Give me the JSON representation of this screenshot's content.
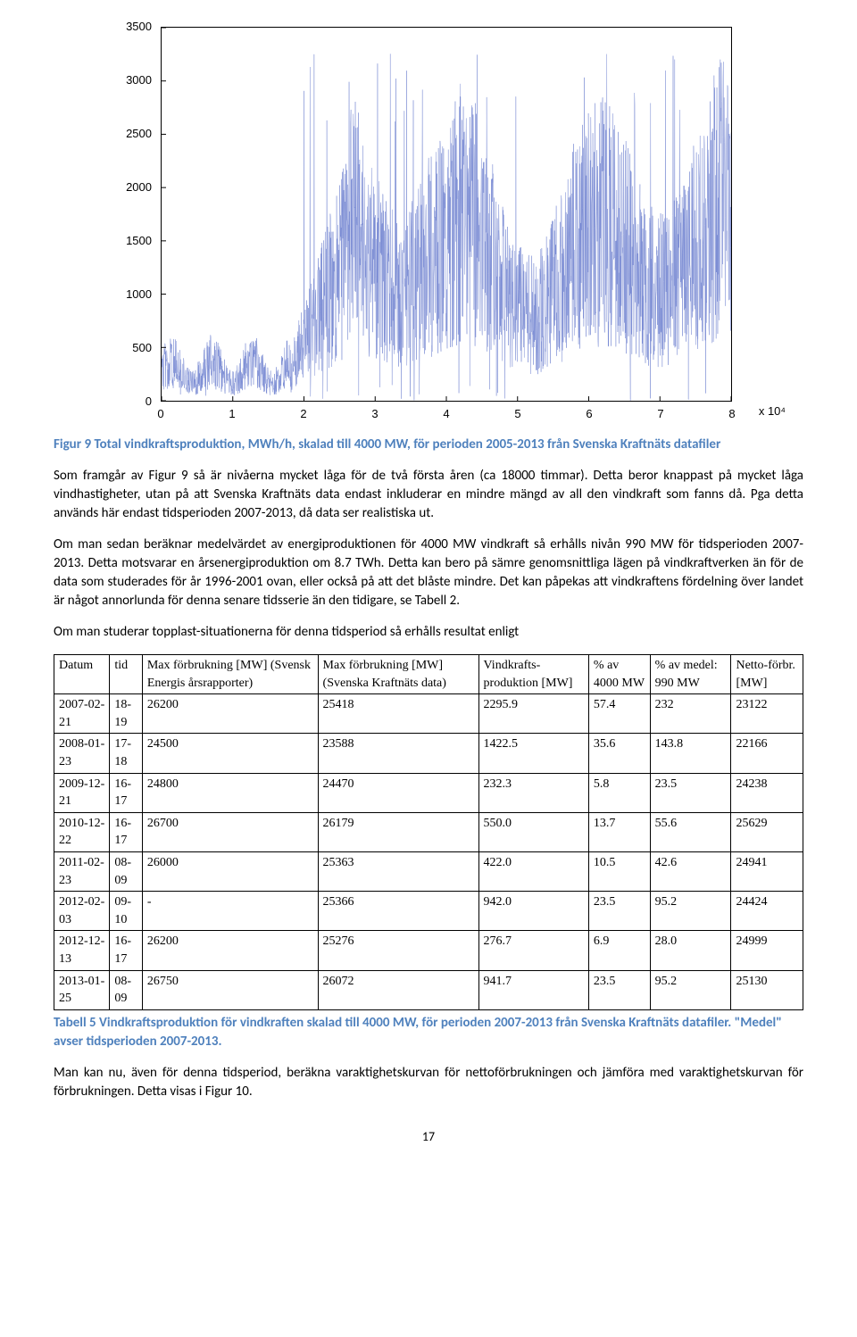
{
  "chart": {
    "type": "line",
    "y_ticks": [
      0,
      500,
      1000,
      1500,
      2000,
      2500,
      3000,
      3500
    ],
    "x_ticks": [
      0,
      1,
      2,
      3,
      4,
      5,
      6,
      7,
      8
    ],
    "x_exponent_label": "x 10⁴",
    "ylim": [
      0,
      3500
    ],
    "xlim": [
      0,
      8
    ],
    "line_color": "#7b8cd4",
    "line_width": 0.5,
    "background_color": "#ffffff",
    "axis_color": "#000000",
    "tick_fontsize": 13
  },
  "figure_caption": "Figur 9 Total vindkraftsproduktion, MWh/h, skalad till 4000 MW, för perioden 2005-2013 från Svenska Kraftnäts datafiler",
  "para1": "Som framgår av Figur 9 så är nivåerna mycket låga för de två första åren (ca 18000 timmar). Detta beror knappast på mycket låga vindhastigheter, utan på att Svenska Kraftnäts data endast inkluderar en mindre mängd av all den vindkraft som fanns då. Pga detta används här endast tidsperioden 2007-2013, då data ser realistiska ut.",
  "para2": "Om man sedan beräknar medelvärdet av energiproduktionen för 4000 MW vindkraft så erhålls nivån 990 MW för tidsperioden 2007-2013. Detta motsvarar en årsenergiproduktion om 8.7 TWh. Detta kan bero på sämre genomsnittliga lägen på vindkraftverken än för de data som studerades för år 1996-2001 ovan, eller också på att det blåste mindre. Det kan påpekas att vindkraftens fördelning över landet är något annorlunda för denna senare tidsserie än den tidigare, se Tabell 2.",
  "para3": "Om man studerar topplast-situationerna för denna tidsperiod så erhålls resultat enligt",
  "table": {
    "headers": {
      "c0": "Datum",
      "c1": "tid",
      "c2": "Max förbrukning [MW] (Svensk Energis årsrapporter)",
      "c3": "Max förbrukning [MW] (Svenska Kraftnäts data)",
      "c4": "Vindkrafts-produktion [MW]",
      "c5": "% av 4000 MW",
      "c6": "% av medel: 990 MW",
      "c7": "Netto-förbr. [MW]"
    },
    "rows": [
      {
        "c0": "2007-02-21",
        "c1": "18-19",
        "c2": "26200",
        "c3": "25418",
        "c4": "2295.9",
        "c5": "57.4",
        "c6": "232",
        "c7": "23122"
      },
      {
        "c0": "2008-01-23",
        "c1": "17-18",
        "c2": "24500",
        "c3": "23588",
        "c4": "1422.5",
        "c5": "35.6",
        "c6": "143.8",
        "c7": "22166"
      },
      {
        "c0": "2009-12-21",
        "c1": "16-17",
        "c2": "24800",
        "c3": "24470",
        "c4": "232.3",
        "c5": "5.8",
        "c6": "23.5",
        "c7": "24238"
      },
      {
        "c0": "2010-12-22",
        "c1": "16-17",
        "c2": "26700",
        "c3": "26179",
        "c4": "550.0",
        "c5": "13.7",
        "c6": "55.6",
        "c7": "25629"
      },
      {
        "c0": "2011-02-23",
        "c1": "08-09",
        "c2": "26000",
        "c3": "25363",
        "c4": "422.0",
        "c5": "10.5",
        "c6": "42.6",
        "c7": "24941"
      },
      {
        "c0": "2012-02-03",
        "c1": "09-10",
        "c2": "-",
        "c3": "25366",
        "c4": "942.0",
        "c5": "23.5",
        "c6": "95.2",
        "c7": "24424"
      },
      {
        "c0": "2012-12-13",
        "c1": "16-17",
        "c2": "26200",
        "c3": "25276",
        "c4": "276.7",
        "c5": "6.9",
        "c6": "28.0",
        "c7": "24999"
      },
      {
        "c0": "2013-01-25",
        "c1": "08-09",
        "c2": "26750",
        "c3": "26072",
        "c4": "941.7",
        "c5": "23.5",
        "c6": "95.2",
        "c7": "25130"
      }
    ]
  },
  "table_caption": "Tabell 5 Vindkraftsproduktion för vindkraften skalad till 4000 MW, för perioden 2007-2013 från Svenska Kraftnäts datafiler. \"Medel\" avser tidsperioden 2007-2013.",
  "para4": "Man kan nu, även för denna tidsperiod, beräkna varaktighetskurvan för nettoförbrukningen och jämföra med varaktighetskurvan för förbrukningen. Detta visas i Figur 10.",
  "page_number": "17"
}
